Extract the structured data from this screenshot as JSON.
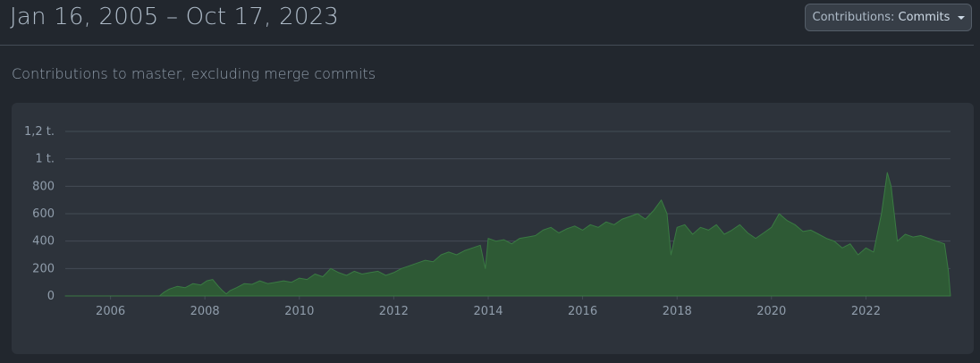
{
  "header": {
    "date_range": "Jan 16, 2005 – Oct 17, 2023",
    "dropdown_prefix": "Contributions:",
    "dropdown_value": "Commits"
  },
  "subtitle": "Contributions to master, excluding merge commits",
  "colors": {
    "background": "#22272e",
    "panel": "#2d333b",
    "area_fill": "#2e5a35",
    "area_stroke": "#3a7a43",
    "grid": "#444c56"
  },
  "chart_data": {
    "type": "area",
    "title": "",
    "xlabel": "",
    "ylabel": "",
    "x_range": [
      "2005-01-16",
      "2023-10-17"
    ],
    "ylim": [
      0,
      1200
    ],
    "yticks": [
      {
        "value": 0,
        "label": "0"
      },
      {
        "value": 200,
        "label": "200"
      },
      {
        "value": 400,
        "label": "400"
      },
      {
        "value": 600,
        "label": "600"
      },
      {
        "value": 800,
        "label": "800"
      },
      {
        "value": 1000,
        "label": "1 t."
      },
      {
        "value": 1200,
        "label": "1,2 t."
      }
    ],
    "xticks": [
      {
        "date": "2006-01-01",
        "label": "2006"
      },
      {
        "date": "2008-01-01",
        "label": "2008"
      },
      {
        "date": "2010-01-01",
        "label": "2010"
      },
      {
        "date": "2012-01-01",
        "label": "2012"
      },
      {
        "date": "2014-01-01",
        "label": "2014"
      },
      {
        "date": "2016-01-01",
        "label": "2016"
      },
      {
        "date": "2018-01-01",
        "label": "2018"
      },
      {
        "date": "2020-01-01",
        "label": "2020"
      },
      {
        "date": "2022-01-01",
        "label": "2022"
      }
    ],
    "grid": true,
    "legend": "none",
    "series": [
      {
        "points": [
          [
            "2005-01-16",
            0
          ],
          [
            "2007-01-15",
            0
          ],
          [
            "2007-02-15",
            25
          ],
          [
            "2007-04-01",
            50
          ],
          [
            "2007-06-01",
            70
          ],
          [
            "2007-08-01",
            60
          ],
          [
            "2007-10-01",
            90
          ],
          [
            "2007-12-01",
            80
          ],
          [
            "2008-01-15",
            110
          ],
          [
            "2008-03-01",
            120
          ],
          [
            "2008-04-15",
            70
          ],
          [
            "2008-05-15",
            40
          ],
          [
            "2008-06-15",
            15
          ],
          [
            "2008-07-15",
            40
          ],
          [
            "2008-09-01",
            60
          ],
          [
            "2008-11-01",
            90
          ],
          [
            "2009-01-01",
            85
          ],
          [
            "2009-03-01",
            110
          ],
          [
            "2009-05-01",
            90
          ],
          [
            "2009-07-01",
            100
          ],
          [
            "2009-09-01",
            110
          ],
          [
            "2009-11-01",
            100
          ],
          [
            "2010-01-01",
            130
          ],
          [
            "2010-03-01",
            120
          ],
          [
            "2010-05-01",
            160
          ],
          [
            "2010-07-01",
            140
          ],
          [
            "2010-09-01",
            200
          ],
          [
            "2010-11-01",
            170
          ],
          [
            "2011-01-01",
            150
          ],
          [
            "2011-03-01",
            180
          ],
          [
            "2011-05-01",
            160
          ],
          [
            "2011-07-01",
            170
          ],
          [
            "2011-09-01",
            180
          ],
          [
            "2011-11-01",
            150
          ],
          [
            "2012-01-01",
            170
          ],
          [
            "2012-03-01",
            200
          ],
          [
            "2012-05-01",
            220
          ],
          [
            "2012-07-01",
            240
          ],
          [
            "2012-09-01",
            260
          ],
          [
            "2012-11-01",
            250
          ],
          [
            "2013-01-01",
            300
          ],
          [
            "2013-03-01",
            320
          ],
          [
            "2013-05-01",
            300
          ],
          [
            "2013-07-01",
            330
          ],
          [
            "2013-09-01",
            350
          ],
          [
            "2013-11-01",
            370
          ],
          [
            "2013-12-10",
            200
          ],
          [
            "2014-01-01",
            420
          ],
          [
            "2014-03-01",
            400
          ],
          [
            "2014-05-01",
            410
          ],
          [
            "2014-07-01",
            380
          ],
          [
            "2014-09-01",
            420
          ],
          [
            "2014-11-01",
            430
          ],
          [
            "2015-01-01",
            440
          ],
          [
            "2015-03-01",
            480
          ],
          [
            "2015-05-01",
            500
          ],
          [
            "2015-07-01",
            460
          ],
          [
            "2015-09-01",
            490
          ],
          [
            "2015-11-01",
            510
          ],
          [
            "2016-01-01",
            480
          ],
          [
            "2016-03-01",
            520
          ],
          [
            "2016-05-01",
            500
          ],
          [
            "2016-07-01",
            540
          ],
          [
            "2016-09-01",
            520
          ],
          [
            "2016-11-01",
            560
          ],
          [
            "2017-01-01",
            580
          ],
          [
            "2017-03-01",
            600
          ],
          [
            "2017-05-01",
            560
          ],
          [
            "2017-07-01",
            620
          ],
          [
            "2017-09-01",
            700
          ],
          [
            "2017-10-15",
            600
          ],
          [
            "2017-11-15",
            300
          ],
          [
            "2018-01-01",
            500
          ],
          [
            "2018-03-01",
            520
          ],
          [
            "2018-05-01",
            450
          ],
          [
            "2018-07-01",
            500
          ],
          [
            "2018-09-01",
            480
          ],
          [
            "2018-11-01",
            520
          ],
          [
            "2019-01-01",
            450
          ],
          [
            "2019-03-01",
            480
          ],
          [
            "2019-05-01",
            520
          ],
          [
            "2019-07-01",
            460
          ],
          [
            "2019-09-01",
            420
          ],
          [
            "2019-11-01",
            460
          ],
          [
            "2020-01-01",
            500
          ],
          [
            "2020-03-01",
            600
          ],
          [
            "2020-05-01",
            550
          ],
          [
            "2020-07-01",
            520
          ],
          [
            "2020-09-01",
            470
          ],
          [
            "2020-11-01",
            480
          ],
          [
            "2021-01-01",
            450
          ],
          [
            "2021-03-01",
            420
          ],
          [
            "2021-05-01",
            400
          ],
          [
            "2021-07-01",
            350
          ],
          [
            "2021-09-01",
            380
          ],
          [
            "2021-11-01",
            300
          ],
          [
            "2022-01-01",
            350
          ],
          [
            "2022-03-01",
            320
          ],
          [
            "2022-05-01",
            600
          ],
          [
            "2022-06-15",
            900
          ],
          [
            "2022-07-15",
            800
          ],
          [
            "2022-09-01",
            400
          ],
          [
            "2022-11-01",
            450
          ],
          [
            "2023-01-01",
            430
          ],
          [
            "2023-03-01",
            440
          ],
          [
            "2023-05-01",
            420
          ],
          [
            "2023-07-01",
            400
          ],
          [
            "2023-09-01",
            380
          ],
          [
            "2023-10-01",
            180
          ],
          [
            "2023-10-17",
            0
          ]
        ]
      }
    ]
  }
}
